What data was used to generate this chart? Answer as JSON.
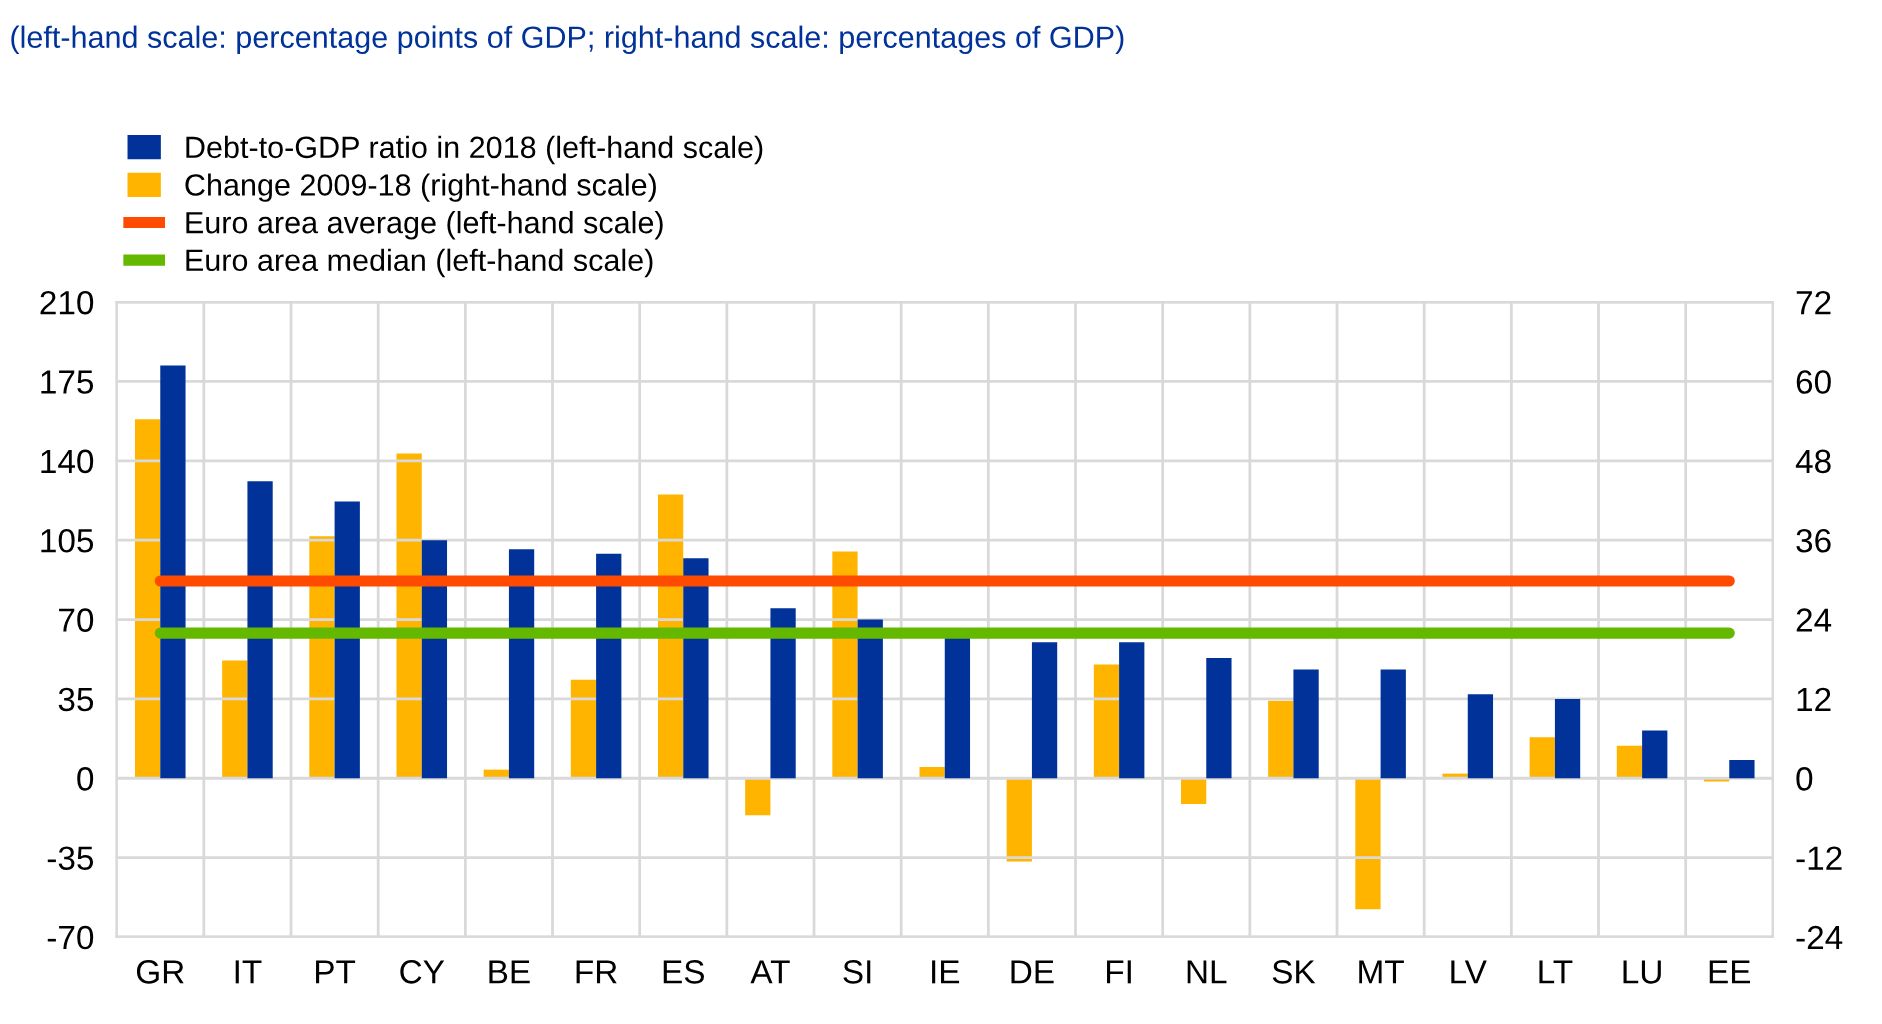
{
  "chart_data": {
    "type": "bar",
    "title": "(left-hand scale: percentage points of GDP; right-hand scale: percentages of GDP)",
    "categories": [
      "GR",
      "IT",
      "PT",
      "CY",
      "BE",
      "FR",
      "ES",
      "AT",
      "SI",
      "IE",
      "DE",
      "FI",
      "NL",
      "SK",
      "MT",
      "LV",
      "LT",
      "LU",
      "EE"
    ],
    "series": [
      {
        "name": "Debt-to-GDP ratio in 2018 (left-hand scale)",
        "color": "#003299",
        "values": [
          182,
          131,
          122,
          105,
          101,
          99,
          97,
          75,
          70,
          62,
          60,
          60,
          53,
          48,
          48,
          37,
          35,
          21,
          8
        ]
      },
      {
        "name": "Change 2009-18 (right-hand scale)",
        "color": "#ffb400",
        "axis": "y2",
        "values": [
          54.3,
          17.8,
          36.6,
          49.1,
          1.3,
          14.9,
          42.9,
          -5.6,
          34.3,
          1.7,
          -12.6,
          17.2,
          -3.9,
          11.7,
          -19.8,
          0.7,
          6.2,
          4.9,
          -0.5
        ]
      },
      {
        "name": "Euro area average (left-hand scale)",
        "color": "#ff4b00",
        "type": "line",
        "values": [
          87,
          87,
          87,
          87,
          87,
          87,
          87,
          87,
          87,
          87,
          87,
          87,
          87,
          87,
          87,
          87,
          87,
          87,
          87
        ]
      },
      {
        "name": "Euro area median (left-hand scale)",
        "color": "#65b800",
        "type": "line",
        "values": [
          64,
          64,
          64,
          64,
          64,
          64,
          64,
          64,
          64,
          64,
          64,
          64,
          64,
          64,
          64,
          64,
          64,
          64,
          64
        ]
      }
    ],
    "ylim": [
      -70,
      210
    ],
    "yticks": [
      -70,
      -35,
      0,
      35,
      70,
      105,
      140,
      175,
      210
    ],
    "y2lim": [
      -24,
      72
    ],
    "y2ticks": [
      -24,
      -12,
      0,
      12,
      24,
      36,
      48,
      60,
      72
    ],
    "grid": true,
    "legend": "top left"
  }
}
